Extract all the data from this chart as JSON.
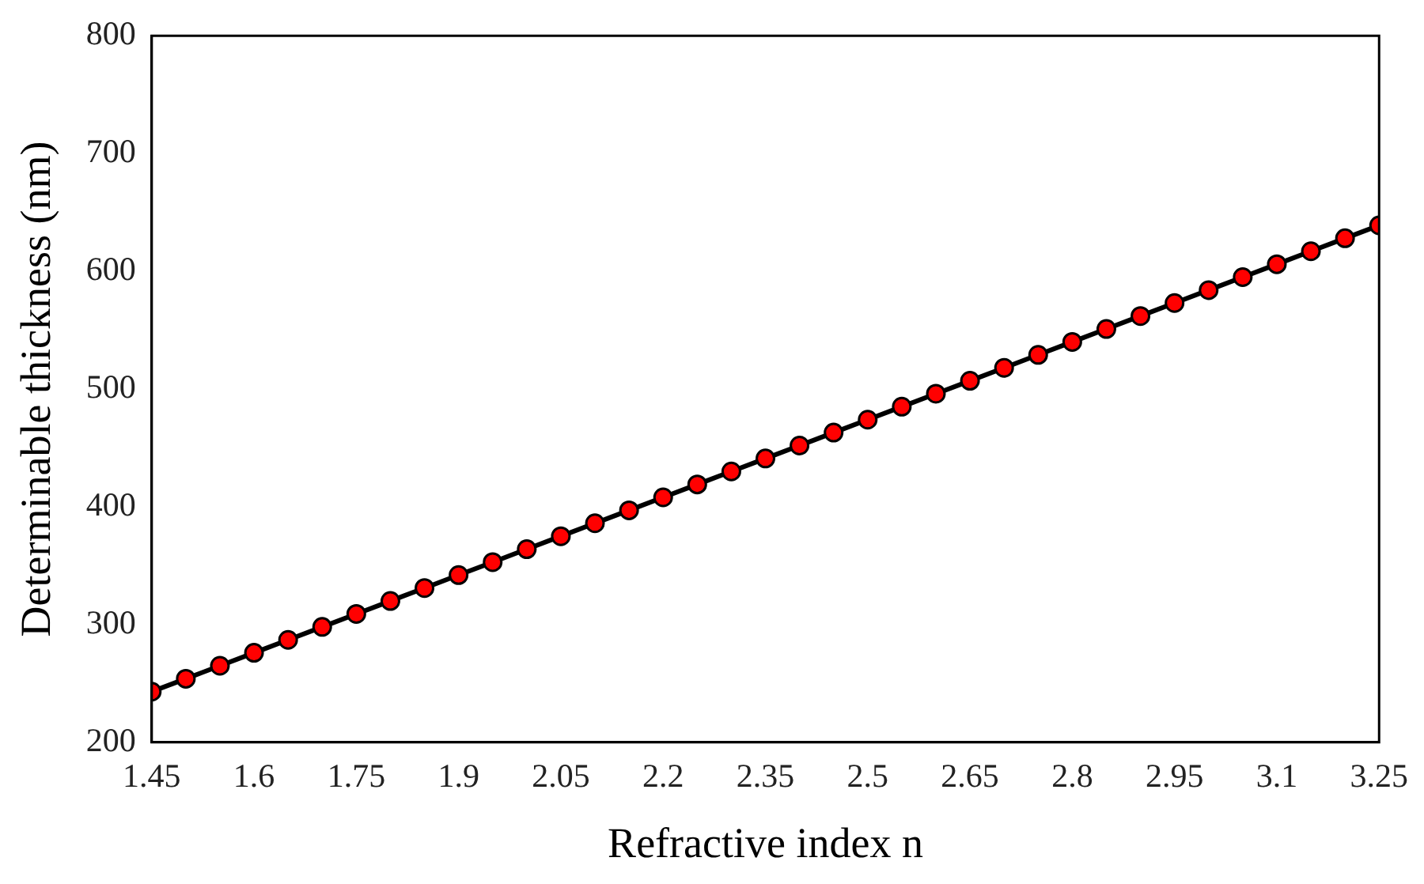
{
  "chart_data": {
    "type": "line",
    "xlabel": "Refractive index n",
    "ylabel": "Determinable thickness (nm)",
    "x": [
      1.45,
      1.5,
      1.55,
      1.6,
      1.65,
      1.7,
      1.75,
      1.8,
      1.85,
      1.9,
      1.95,
      2.0,
      2.05,
      2.1,
      2.15,
      2.2,
      2.25,
      2.3,
      2.35,
      2.4,
      2.45,
      2.5,
      2.55,
      2.6,
      2.65,
      2.7,
      2.75,
      2.8,
      2.85,
      2.9,
      2.95,
      3.0,
      3.05,
      3.1,
      3.15,
      3.2,
      3.25
    ],
    "series": [
      {
        "color": "#000000",
        "values": [
          243,
          254,
          265,
          276,
          287,
          298,
          309,
          320,
          331,
          342,
          353,
          364,
          375,
          386,
          397,
          408,
          419,
          430,
          441,
          452,
          463,
          474,
          485,
          496,
          507,
          518,
          529,
          540,
          551,
          562,
          573,
          584,
          595,
          606,
          617,
          628,
          639
        ]
      }
    ],
    "marker": "circle",
    "line_style": "solid",
    "grid": false,
    "legend": false,
    "xlim": [
      1.45,
      3.25
    ],
    "xticks": [
      1.45,
      1.6,
      1.75,
      1.9,
      2.05,
      2.2,
      2.35,
      2.5,
      2.65,
      2.8,
      2.95,
      3.1,
      3.25
    ],
    "ylim": [
      200,
      800
    ],
    "yticks": [
      200,
      300,
      400,
      500,
      600,
      700,
      800
    ]
  }
}
